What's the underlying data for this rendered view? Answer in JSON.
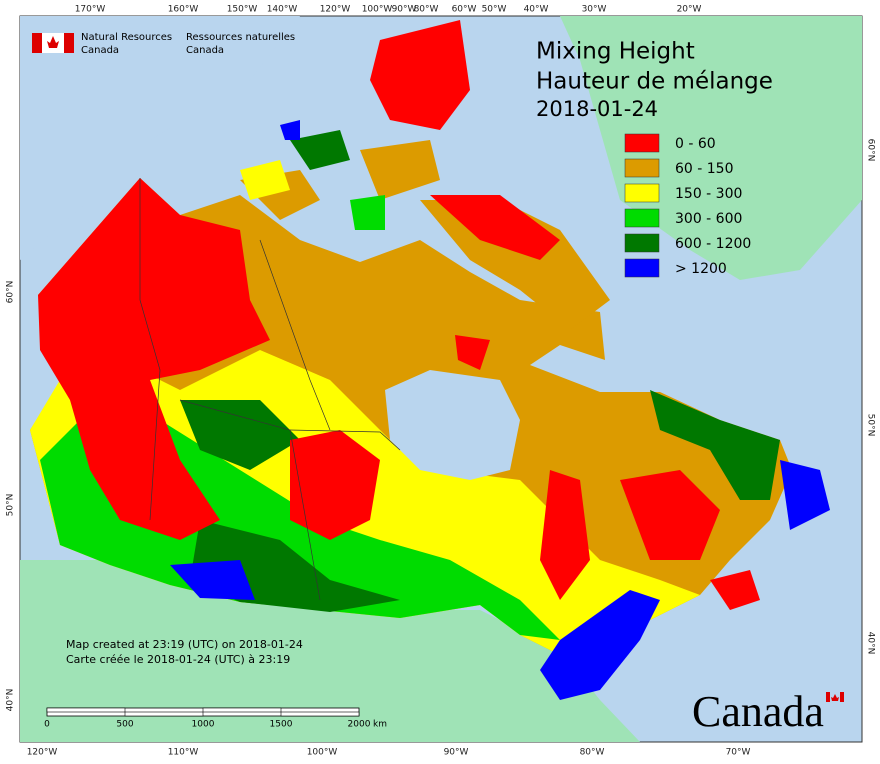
{
  "header": {
    "agency_en_1": "Natural Resources",
    "agency_en_2": "Canada",
    "agency_fr_1": "Ressources naturelles",
    "agency_fr_2": "Canada"
  },
  "title": {
    "line_en": "Mixing Height",
    "line_fr": "Hauteur de mélange",
    "date": "2018-01-24"
  },
  "legend": [
    {
      "label": "0 - 60",
      "color": "#ff0000"
    },
    {
      "label": "60 - 150",
      "color": "#dc9b00"
    },
    {
      "label": "150 - 300",
      "color": "#ffff00"
    },
    {
      "label": "300 - 600",
      "color": "#00dc00"
    },
    {
      "label": "600 - 1200",
      "color": "#007800"
    },
    {
      "label": "> 1200",
      "color": "#0000ff"
    }
  ],
  "graticule": {
    "top": [
      "170°W",
      "160°W",
      "150°W",
      "140°W",
      "120°W",
      "100°W",
      "90°W",
      "80°W",
      "60°W",
      "50°W",
      "40°W",
      "30°W",
      "20°W"
    ],
    "bottom": [
      "120°W",
      "110°W",
      "100°W",
      "90°W",
      "80°W",
      "70°W"
    ],
    "left": [
      "60°N",
      "50°N",
      "40°N"
    ],
    "right": [
      "60°N",
      "50°N",
      "40°N"
    ]
  },
  "credits": {
    "en": "Map created at 23:19 (UTC) on 2018-01-24",
    "fr": "Carte créée le 2018-01-24 (UTC) à 23:19"
  },
  "scale_bar": {
    "labels": [
      "0",
      "500",
      "1000",
      "1500",
      "2000"
    ],
    "unit": "km"
  },
  "wordmark": "Canada"
}
